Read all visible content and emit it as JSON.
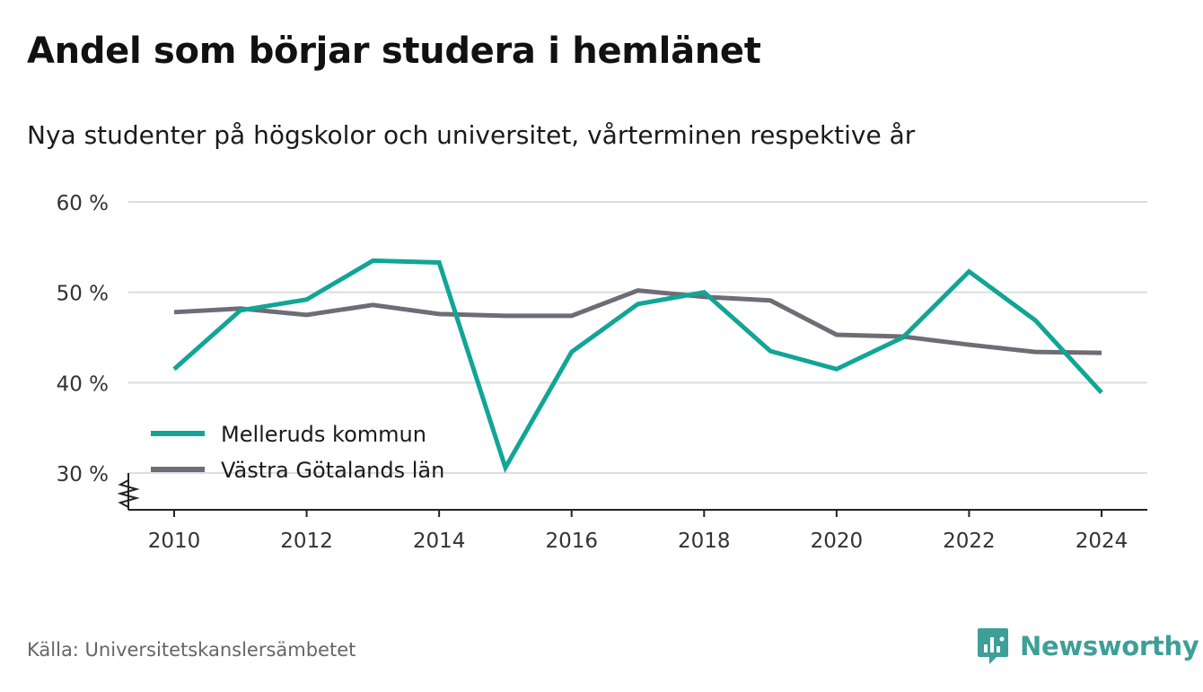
{
  "title": "Andel som börjar studera i hemlänet",
  "subtitle": "Nya studenter på högskolor och universitet, vårterminen respektive år",
  "source": "Källa: Universitetskanslersämbetet",
  "brand": "Newsworthy",
  "colors": {
    "series1": "#12a597",
    "series2": "#6e6c74",
    "brand": "#3d9f98",
    "grid": "#dddddd",
    "axis": "#222222"
  },
  "chart_data": {
    "type": "line",
    "x": [
      2010,
      2011,
      2012,
      2013,
      2014,
      2015,
      2016,
      2017,
      2018,
      2019,
      2020,
      2021,
      2022,
      2023,
      2024
    ],
    "series": [
      {
        "name": "Melleruds kommun",
        "values": [
          41.5,
          48.0,
          49.2,
          53.5,
          53.3,
          30.6,
          43.4,
          48.7,
          50.0,
          43.5,
          41.5,
          45.0,
          52.3,
          46.9,
          38.9
        ]
      },
      {
        "name": "Västra Götalands län",
        "values": [
          47.8,
          48.2,
          47.5,
          48.6,
          47.6,
          47.4,
          47.4,
          50.2,
          49.5,
          49.1,
          45.3,
          45.1,
          44.2,
          43.4,
          43.3
        ]
      }
    ],
    "xticks": [
      "2010",
      "2012",
      "2014",
      "2016",
      "2018",
      "2020",
      "2022",
      "2024"
    ],
    "yticks": [
      "30 %",
      "40 %",
      "50 %",
      "60 %"
    ],
    "ylim": [
      30,
      60
    ],
    "xlim": [
      2010,
      2024
    ],
    "grid": true,
    "legend": "bottom-left"
  }
}
